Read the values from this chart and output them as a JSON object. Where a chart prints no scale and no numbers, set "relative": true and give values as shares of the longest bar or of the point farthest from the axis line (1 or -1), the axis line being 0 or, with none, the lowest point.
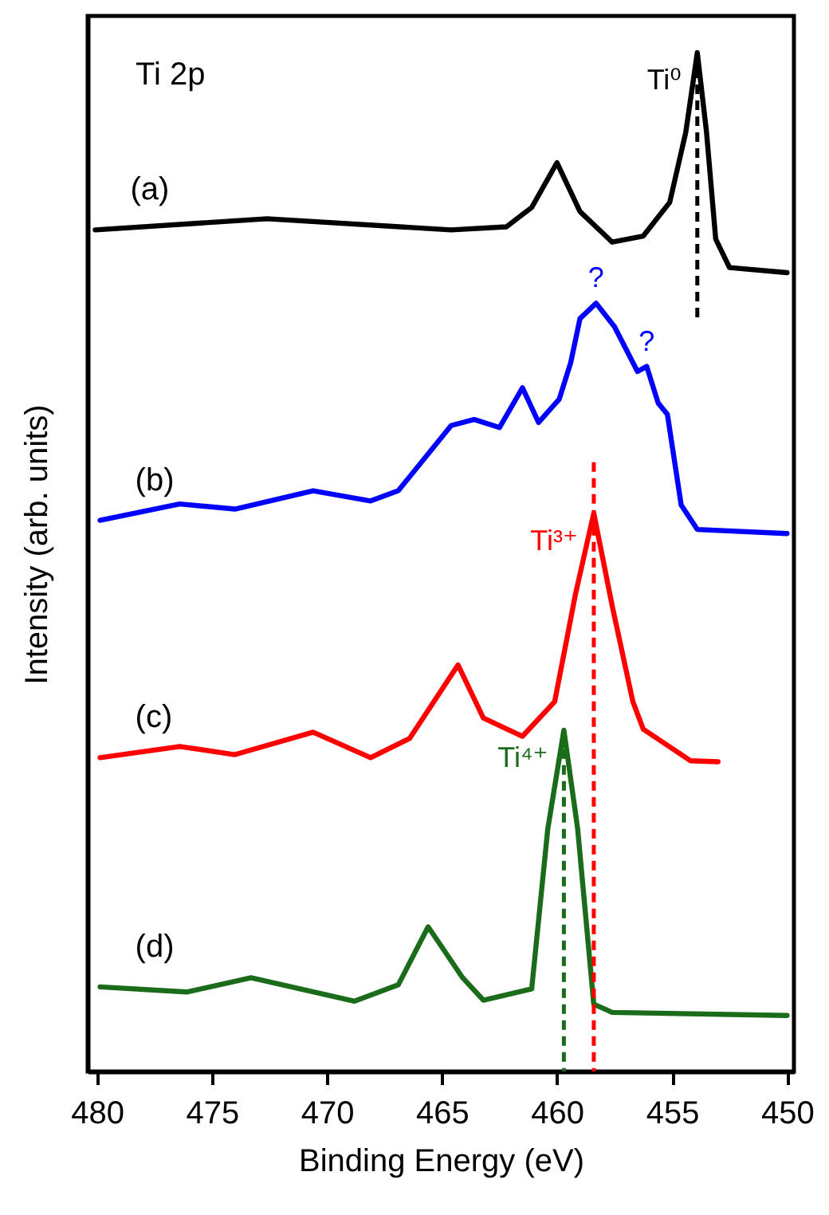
{
  "chart_data": {
    "type": "line",
    "relative": true,
    "xlabel": "Binding Energy (eV)",
    "ylabel": "Intensity (arb. units)",
    "xlim": [
      480.4,
      449.7
    ],
    "xticks": [
      480,
      475,
      470,
      465,
      460,
      455,
      450
    ],
    "series": [
      {
        "name": "(a)",
        "color": "#000000",
        "x": [
          480.07,
          472.6,
          464.6,
          462.2,
          461.1,
          460.0,
          459.0,
          457.6,
          456.25,
          455.1,
          454.4,
          453.9,
          453.5,
          453.1,
          452.5,
          450.0
        ],
        "values": [
          0.826,
          0.837,
          0.826,
          0.829,
          0.848,
          0.892,
          0.844,
          0.814,
          0.82,
          0.853,
          0.922,
          1.0,
          0.922,
          0.817,
          0.789,
          0.784
        ]
      },
      {
        "name": "(b)",
        "color": "#0000ff",
        "x": [
          479.86,
          476.4,
          474.0,
          470.6,
          468.1,
          466.9,
          464.6,
          463.6,
          462.5,
          461.5,
          460.8,
          459.9,
          459.4,
          459.0,
          458.3,
          457.5,
          456.5,
          456.1,
          455.6,
          455.2,
          454.6,
          453.9,
          450.0
        ],
        "values": [
          0.541,
          0.557,
          0.552,
          0.57,
          0.56,
          0.57,
          0.634,
          0.64,
          0.632,
          0.671,
          0.637,
          0.66,
          0.696,
          0.739,
          0.754,
          0.731,
          0.687,
          0.692,
          0.656,
          0.645,
          0.556,
          0.532,
          0.528
        ]
      },
      {
        "name": "(c)",
        "color": "#ff0000",
        "x": [
          479.86,
          476.4,
          474.0,
          470.6,
          468.1,
          466.4,
          464.3,
          463.2,
          461.5,
          460.1,
          459.2,
          458.4,
          457.6,
          456.7,
          456.25,
          454.2,
          453.0
        ],
        "values": [
          0.308,
          0.319,
          0.311,
          0.333,
          0.308,
          0.327,
          0.399,
          0.347,
          0.329,
          0.363,
          0.468,
          0.548,
          0.457,
          0.363,
          0.336,
          0.305,
          0.304
        ]
      },
      {
        "name": "(d)",
        "color": "#1a6b1a",
        "x": [
          479.86,
          476.1,
          473.3,
          468.8,
          466.9,
          465.6,
          464.1,
          463.2,
          461.1,
          460.4,
          459.7,
          459.1,
          458.4,
          457.6,
          450.0
        ],
        "values": [
          0.083,
          0.078,
          0.092,
          0.069,
          0.085,
          0.142,
          0.092,
          0.07,
          0.081,
          0.238,
          0.335,
          0.238,
          0.066,
          0.058,
          0.055
        ]
      },
      {
        "color": "#000000",
        "line_style": "dashed",
        "x": [
          453.9,
          453.9
        ],
        "values": [
          1.0,
          0.734
        ]
      },
      {
        "color": "#ff0000",
        "line_style": "dashed",
        "x": [
          458.4,
          458.4
        ],
        "values": [
          0.598,
          0.0
        ]
      },
      {
        "color": "#1a6b1a",
        "line_style": "dashed",
        "x": [
          459.7,
          459.7
        ],
        "values": [
          0.332,
          0.0
        ]
      }
    ],
    "annotations": [
      "Ti 2p",
      {
        "text": "Ti⁰",
        "x": 453.9,
        "y": 1.0
      },
      {
        "text": "?",
        "x": 458.3,
        "y": 0.754
      },
      {
        "text": "?",
        "x": 456.1,
        "y": 0.692
      },
      {
        "text": "Ti³⁺",
        "x": 458.4,
        "y": 0.548
      },
      {
        "text": "Ti⁴⁺",
        "x": 459.7,
        "y": 0.335
      }
    ]
  }
}
